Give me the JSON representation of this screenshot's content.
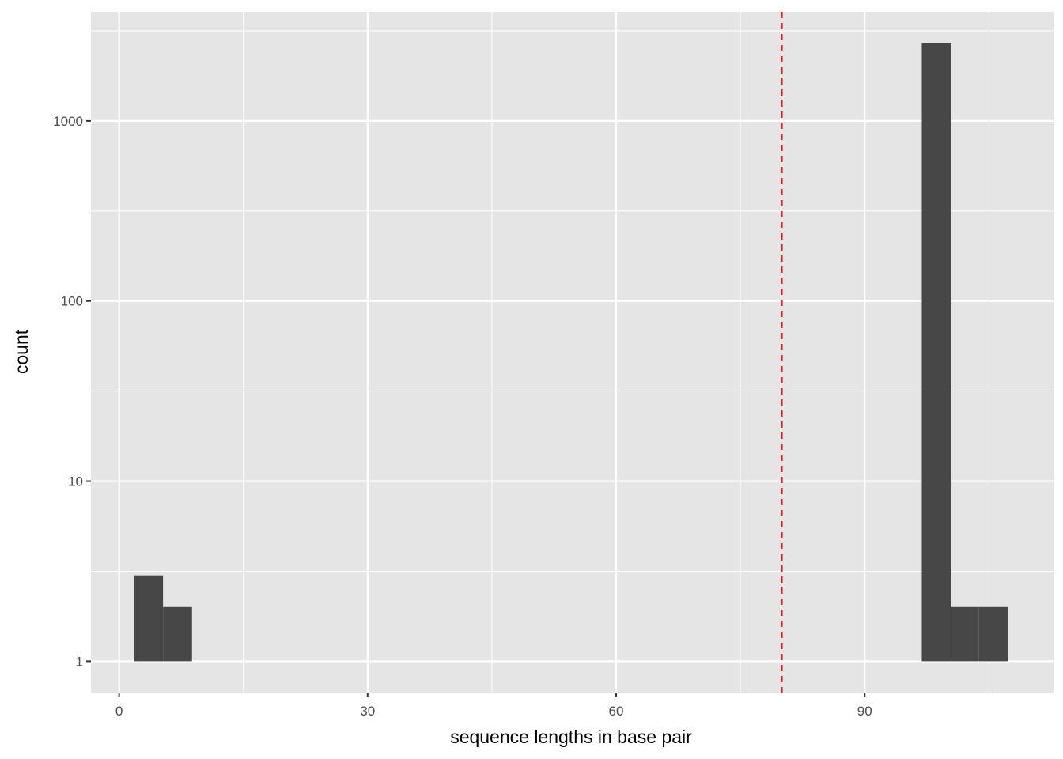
{
  "chart_data": {
    "type": "bar",
    "subtype": "histogram",
    "title": "",
    "xlabel": "sequence lengths in base pair",
    "ylabel": "count",
    "y_scale": "log10",
    "xlim": [
      -3.4,
      112.8
    ],
    "ylim": [
      0.67,
      4030
    ],
    "x_ticks": [
      0,
      30,
      60,
      90
    ],
    "x_tick_labels": [
      "0",
      "30",
      "60",
      "90"
    ],
    "x_minor": [
      15,
      45,
      75,
      105
    ],
    "y_ticks": [
      1,
      10,
      100,
      1000
    ],
    "y_tick_labels": [
      "1",
      "10",
      "100",
      "1000"
    ],
    "grid": true,
    "bins": [
      {
        "x_start": 1.8,
        "x_end": 5.3,
        "count": 3
      },
      {
        "x_start": 5.3,
        "x_end": 8.8,
        "count": 2
      },
      {
        "x_start": 96.9,
        "x_end": 100.4,
        "count": 2700
      },
      {
        "x_start": 100.4,
        "x_end": 103.8,
        "count": 2
      },
      {
        "x_start": 103.8,
        "x_end": 107.3,
        "count": 2
      }
    ],
    "vline": {
      "x": 80,
      "style": "dashed",
      "color": "#e31a1c"
    },
    "bar_color": "#474747",
    "panel_color": "#e5e5e5"
  }
}
